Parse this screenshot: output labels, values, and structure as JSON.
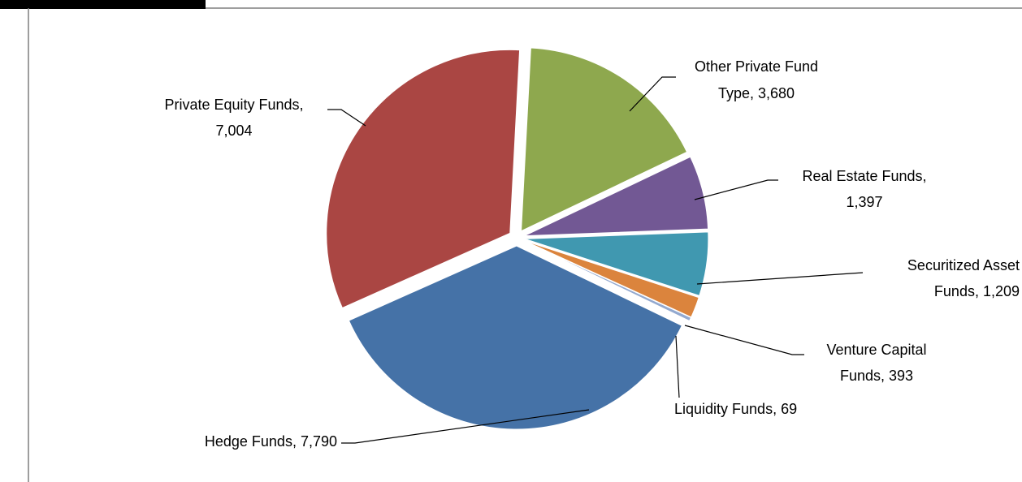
{
  "chart_data": {
    "type": "pie",
    "categories": [
      "Other Private Fund Type,",
      "Real Estate Funds,",
      "Securitized Asset Funds,",
      "Venture Capital Funds,",
      "Liquidity Funds,",
      "Hedge Funds,",
      "Private Equity Funds,"
    ],
    "values": [
      3680,
      1397,
      1209,
      393,
      69,
      7790,
      7004
    ],
    "value_labels": [
      "3,680",
      "1,397",
      "1,209",
      "393",
      "69",
      "7,790",
      "7,004"
    ],
    "colors": [
      "#8ea84e",
      "#725894",
      "#4098b0",
      "#db843d",
      "#93a9cf",
      "#4572a7",
      "#aa4643"
    ]
  }
}
